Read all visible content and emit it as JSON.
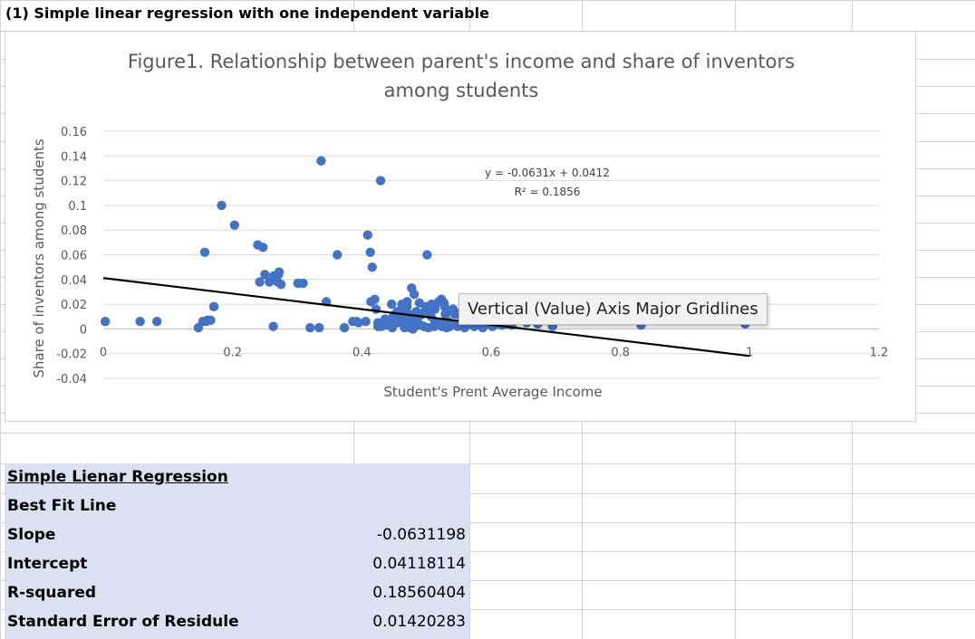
{
  "sheet": {
    "title_cell": "(1) Simple linear regression with one independent variable"
  },
  "tooltip": "Vertical (Value) Axis Major Gridlines",
  "chart_data": {
    "type": "scatter",
    "title": "Figure1. Relationship between parent's income and share of inventors among students",
    "title_lines": [
      "Figure1. Relationship between parent's income and share of inventors",
      "among students"
    ],
    "xlabel": "Student's Prent Average Income",
    "ylabel": "Share of inventors among students",
    "xlim": [
      0,
      1.2
    ],
    "ylim": [
      -0.04,
      0.16
    ],
    "xticks": [
      0,
      0.2,
      0.4,
      0.6,
      0.8,
      1,
      1.2
    ],
    "xtick_labels": [
      "0",
      "0.2",
      "0.4",
      "0.6",
      "0.8",
      "1",
      "1.2"
    ],
    "yticks": [
      -0.04,
      -0.02,
      0,
      0.02,
      0.04,
      0.06,
      0.08,
      0.1,
      0.12,
      0.14,
      0.16
    ],
    "ytick_labels": [
      "-0.04",
      "-0.02",
      "0",
      "0.02",
      "0.04",
      "0.06",
      "0.08",
      "0.1",
      "0.12",
      "0.14",
      "0.16"
    ],
    "grid": "horizontal",
    "series_color": "#4472c4",
    "trendline_color": "#000000",
    "equation": "y = -0.0631x + 0.0412",
    "r2": "R² = 0.1856",
    "trendline": {
      "slope": -0.0631,
      "intercept": 0.0412,
      "x_range": [
        0,
        1
      ]
    },
    "x": [
      0.003,
      0.057,
      0.083,
      0.147,
      0.154,
      0.159,
      0.161,
      0.166,
      0.171,
      0.157,
      0.183,
      0.203,
      0.239,
      0.247,
      0.25,
      0.272,
      0.257,
      0.264,
      0.271,
      0.275,
      0.266,
      0.27,
      0.301,
      0.309,
      0.242,
      0.263,
      0.337,
      0.334,
      0.32,
      0.345,
      0.362,
      0.373,
      0.386,
      0.392,
      0.395,
      0.413,
      0.409,
      0.416,
      0.429,
      0.446,
      0.455,
      0.462,
      0.465,
      0.47,
      0.477,
      0.481,
      0.489,
      0.495,
      0.501,
      0.508,
      0.513,
      0.519,
      0.523,
      0.528,
      0.533,
      0.538,
      0.543,
      0.55,
      0.558,
      0.566,
      0.574,
      0.584,
      0.594,
      0.611,
      0.625,
      0.642,
      0.655,
      0.672,
      0.695,
      0.627,
      0.632,
      0.603,
      0.617,
      0.587,
      0.522,
      0.533,
      0.544,
      0.556,
      0.548,
      0.513,
      0.486,
      0.474,
      0.469,
      0.455,
      0.438,
      0.43,
      0.425,
      0.406,
      0.414,
      0.42,
      0.422,
      0.436,
      0.447,
      0.452,
      0.458,
      0.461,
      0.477,
      0.485,
      0.491,
      0.497,
      0.505,
      0.512,
      0.527,
      0.541,
      0.553,
      0.564,
      0.575,
      0.586,
      0.596,
      0.605,
      0.615,
      0.626,
      0.436,
      0.448,
      0.467,
      0.482,
      0.496,
      0.512,
      0.524,
      0.536,
      0.548,
      0.561,
      0.574,
      0.588,
      0.602,
      0.447,
      0.475,
      0.503,
      0.531,
      0.559,
      0.587,
      0.507,
      0.529,
      0.832,
      0.988,
      0.992,
      0.993,
      0.47,
      0.466,
      0.463,
      0.472,
      0.484,
      0.499,
      0.425,
      0.43,
      0.466,
      0.479,
      0.491
    ],
    "y": [
      0.006,
      0.006,
      0.006,
      0.001,
      0.006,
      0.006,
      0.007,
      0.007,
      0.018,
      0.062,
      0.1,
      0.084,
      0.068,
      0.066,
      0.044,
      0.046,
      0.038,
      0.043,
      0.044,
      0.036,
      0.04,
      0.038,
      0.037,
      0.037,
      0.038,
      0.002,
      0.136,
      0.001,
      0.001,
      0.022,
      0.06,
      0.001,
      0.006,
      0.006,
      0.005,
      0.062,
      0.076,
      0.05,
      0.12,
      0.02,
      0.014,
      0.02,
      0.015,
      0.018,
      0.033,
      0.028,
      0.021,
      0.013,
      0.06,
      0.02,
      0.016,
      0.022,
      0.024,
      0.018,
      0.015,
      0.015,
      0.012,
      0.012,
      0.01,
      0.008,
      0.006,
      0.007,
      0.005,
      0.004,
      0.02,
      0.009,
      0.005,
      0.004,
      0.002,
      0.009,
      0.003,
      0.004,
      0.003,
      0.005,
      0.004,
      0.006,
      0.004,
      0.008,
      0.012,
      0.006,
      0.005,
      0.003,
      0.006,
      0.005,
      0.006,
      0.004,
      0.002,
      0.006,
      0.022,
      0.024,
      0.016,
      0.008,
      0.009,
      0.012,
      0.01,
      0.014,
      0.008,
      0.009,
      0.011,
      0.013,
      0.017,
      0.019,
      0.021,
      0.016,
      0.013,
      0.01,
      0.009,
      0.007,
      0.004,
      0.006,
      0.004,
      0.004,
      0.003,
      0.003,
      0.002,
      0.002,
      0.002,
      0.002,
      0.002,
      0.002,
      0.002,
      0.002,
      0.002,
      0.002,
      0.002,
      0.001,
      0.001,
      0.001,
      0.001,
      0.001,
      0.001,
      0.01,
      0.012,
      0.003,
      0.009,
      0.006,
      0.004,
      0.022,
      0.016,
      0.01,
      0.012,
      0.014,
      0.018,
      0.005,
      0.002,
      0.001,
      0.0,
      0.003
    ]
  },
  "stats": {
    "header": "Simple Lienar Regression ",
    "rows": [
      {
        "label": "Best Fit Line",
        "value": ""
      },
      {
        "label": "Slope",
        "value": "-0.0631198"
      },
      {
        "label": "Intercept",
        "value": "0.04118114"
      },
      {
        "label": "R-squared",
        "value": "0.18560404"
      },
      {
        "label": "Standard Error of Residule",
        "value": "0.01420283"
      }
    ]
  }
}
